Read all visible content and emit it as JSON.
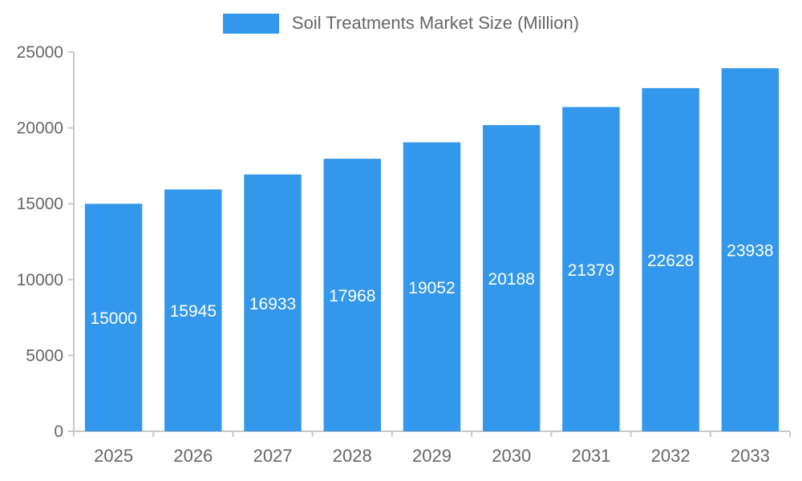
{
  "legend": {
    "label": "Soil Treatments Market Size (Million)"
  },
  "chart_data": {
    "type": "bar",
    "title": "Soil Treatments Market Size (Million)",
    "categories": [
      "2025",
      "2026",
      "2027",
      "2028",
      "2029",
      "2030",
      "2031",
      "2032",
      "2033"
    ],
    "values": [
      15000,
      15945,
      16933,
      17968,
      19052,
      20188,
      21379,
      22628,
      23938
    ],
    "xlabel": "",
    "ylabel": "",
    "ylim": [
      0,
      25000
    ],
    "yticks": [
      0,
      5000,
      10000,
      15000,
      20000,
      25000
    ],
    "grid": false,
    "legend_position": "top",
    "bar_color": "#3398EB",
    "value_label_color": "#ffffff",
    "axis_color": "#c8c8c8",
    "tick_label_color": "#666666"
  }
}
